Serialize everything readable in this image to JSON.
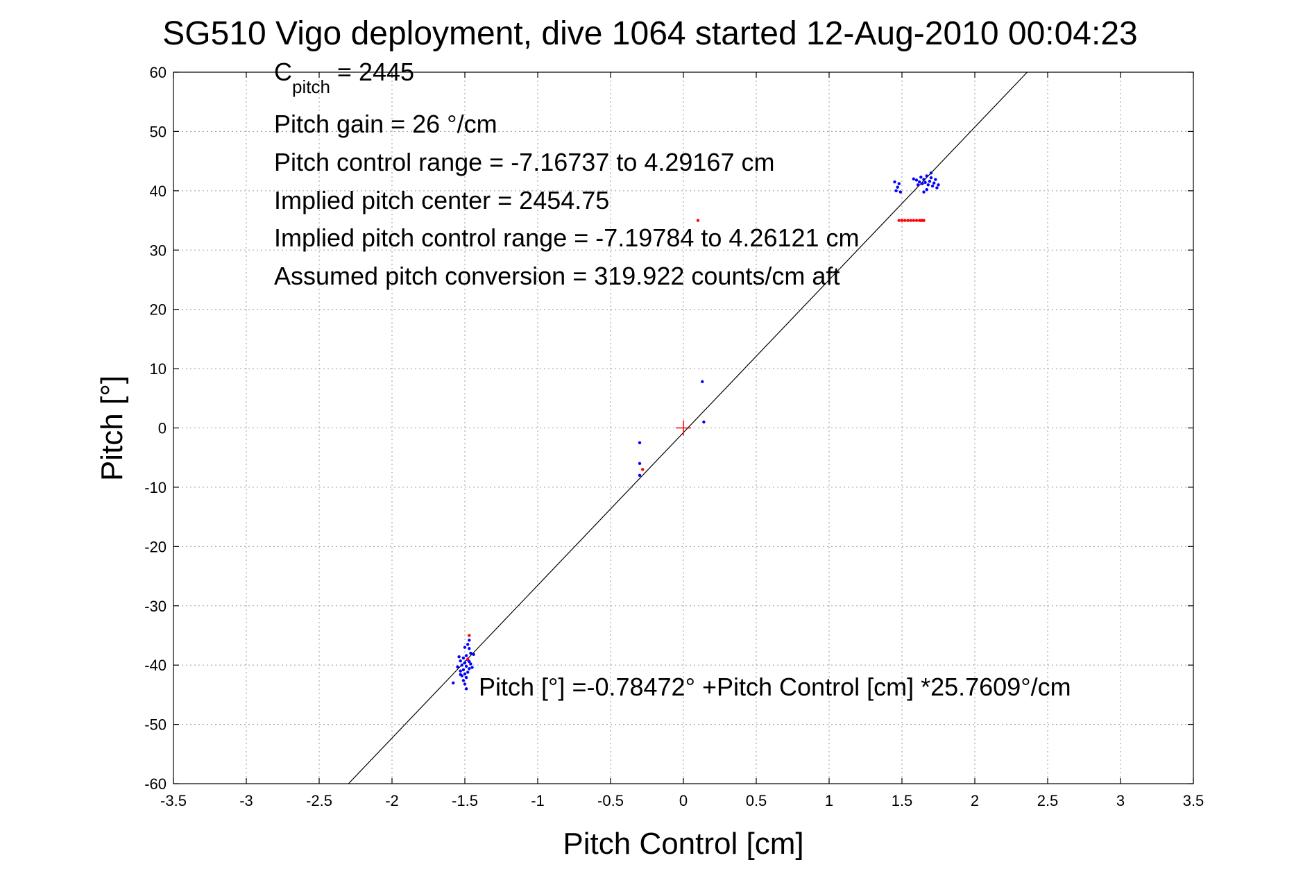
{
  "chart_data": {
    "type": "scatter",
    "title": "SG510 Vigo deployment, dive 1064 started 12-Aug-2010 00:04:23",
    "xlabel": "Pitch Control [cm]",
    "ylabel": "Pitch [°]",
    "xlim": [
      -3.5,
      3.5
    ],
    "ylim": [
      -60,
      60
    ],
    "xticks": [
      "-3.5",
      "-3",
      "-2.5",
      "-2",
      "-1.5",
      "-1",
      "-0.5",
      "0",
      "0.5",
      "1",
      "1.5",
      "2",
      "2.5",
      "3",
      "3.5"
    ],
    "yticks": [
      "-60",
      "-50",
      "-40",
      "-30",
      "-20",
      "-10",
      "0",
      "10",
      "20",
      "30",
      "40",
      "50",
      "60"
    ],
    "grid": true,
    "annotations": {
      "c_pitch_main": "C",
      "c_pitch_sub": "pitch",
      "c_pitch_value": " = 2445",
      "pitch_gain": "Pitch gain = 26 °/cm",
      "pitch_control_range": "Pitch control range = -7.16737 to 4.29167 cm",
      "implied_pitch_center": "Implied pitch center = 2454.75",
      "implied_pitch_control_range": "Implied pitch control range = -7.19784 to 4.26121 cm",
      "assumed_conversion": "Assumed pitch conversion = 319.922 counts/cm aft",
      "fit_equation": "Pitch [°] =-0.78472° +Pitch Control [cm] *25.7609°/cm"
    },
    "fit_line": {
      "intercept": -0.78472,
      "slope": 25.7609
    },
    "center_marker": {
      "x": 0,
      "y": 0,
      "color": "#ff0000"
    },
    "series": [
      {
        "color": "#0000ff",
        "points": [
          [
            -1.47,
            -35.8
          ],
          [
            -1.48,
            -36.5
          ],
          [
            -1.47,
            -37.2
          ],
          [
            -1.5,
            -37.0
          ],
          [
            -1.46,
            -38.0
          ],
          [
            -1.49,
            -38.4
          ],
          [
            -1.51,
            -38.8
          ],
          [
            -1.48,
            -39.1
          ],
          [
            -1.53,
            -39.3
          ],
          [
            -1.5,
            -39.6
          ],
          [
            -1.46,
            -39.8
          ],
          [
            -1.52,
            -40.0
          ],
          [
            -1.49,
            -40.2
          ],
          [
            -1.55,
            -40.3
          ],
          [
            -1.47,
            -40.6
          ],
          [
            -1.51,
            -40.8
          ],
          [
            -1.53,
            -41.0
          ],
          [
            -1.48,
            -41.2
          ],
          [
            -1.5,
            -41.5
          ],
          [
            -1.52,
            -41.8
          ],
          [
            -1.49,
            -42.1
          ],
          [
            -1.51,
            -42.6
          ],
          [
            -1.5,
            -43.2
          ],
          [
            -1.49,
            -44.0
          ],
          [
            -1.58,
            -43.0
          ],
          [
            -1.44,
            -38.2
          ],
          [
            -1.54,
            -38.6
          ],
          [
            -1.47,
            -39.4
          ],
          [
            -1.45,
            -40.4
          ],
          [
            -1.53,
            -41.6
          ],
          [
            -0.3,
            -2.5
          ],
          [
            -0.3,
            -6.0
          ],
          [
            -0.3,
            -8.0
          ],
          [
            0.13,
            7.8
          ],
          [
            0.14,
            1.0
          ],
          [
            1.45,
            41.5
          ],
          [
            1.47,
            40.6
          ],
          [
            1.48,
            41.2
          ],
          [
            1.46,
            40.0
          ],
          [
            1.49,
            39.8
          ],
          [
            1.58,
            42.0
          ],
          [
            1.6,
            41.8
          ],
          [
            1.62,
            41.5
          ],
          [
            1.63,
            42.3
          ],
          [
            1.64,
            41.2
          ],
          [
            1.65,
            41.9
          ],
          [
            1.66,
            41.4
          ],
          [
            1.67,
            42.5
          ],
          [
            1.68,
            41.0
          ],
          [
            1.69,
            41.6
          ],
          [
            1.7,
            42.2
          ],
          [
            1.71,
            40.8
          ],
          [
            1.72,
            41.3
          ],
          [
            1.73,
            41.9
          ],
          [
            1.74,
            40.5
          ],
          [
            1.75,
            41.0
          ],
          [
            1.67,
            40.2
          ],
          [
            1.65,
            39.8
          ],
          [
            1.7,
            43.0
          ],
          [
            1.61,
            41.0
          ]
        ]
      },
      {
        "color": "#ff0000",
        "points": [
          [
            -1.47,
            -35.0
          ],
          [
            -1.48,
            -39.0
          ],
          [
            -0.28,
            -7.0
          ],
          [
            0.1,
            35.0
          ],
          [
            1.48,
            35.0
          ],
          [
            1.5,
            35.0
          ],
          [
            1.52,
            35.0
          ],
          [
            1.54,
            35.0
          ],
          [
            1.56,
            35.0
          ],
          [
            1.58,
            35.0
          ],
          [
            1.6,
            35.0
          ],
          [
            1.62,
            35.0
          ],
          [
            1.63,
            35.0
          ],
          [
            1.64,
            35.0
          ],
          [
            1.65,
            35.0
          ]
        ]
      }
    ]
  }
}
